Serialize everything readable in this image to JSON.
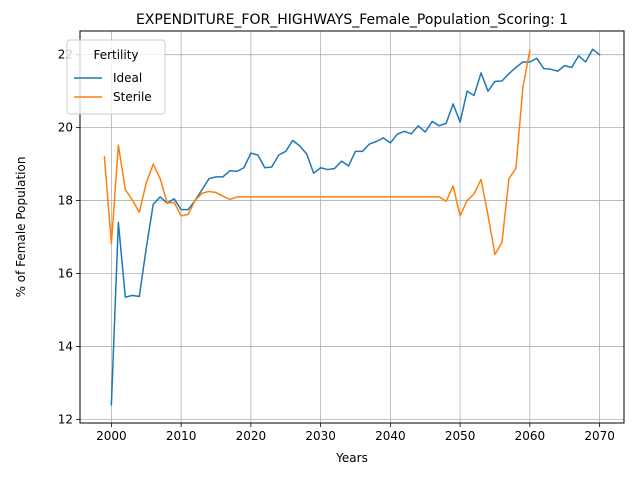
{
  "chart_data": {
    "type": "line",
    "title": "EXPENDITURE_FOR_HIGHWAYS_Female_Population_Scoring: 1",
    "xlabel": "Years",
    "ylabel": "% of Female Population",
    "xlim": [
      1995.5,
      2073.5
    ],
    "ylim": [
      11.9,
      22.65
    ],
    "xticks": [
      2000,
      2010,
      2020,
      2030,
      2040,
      2050,
      2060,
      2070
    ],
    "yticks": [
      12,
      14,
      16,
      18,
      20,
      22
    ],
    "grid": true,
    "legend": {
      "title": "Fertility",
      "placement": "top-left"
    },
    "series": [
      {
        "name": "Ideal",
        "color": "#1f77b4",
        "x": [
          2000,
          2001,
          2002,
          2003,
          2004,
          2005,
          2006,
          2007,
          2008,
          2009,
          2010,
          2011,
          2012,
          2013,
          2014,
          2015,
          2016,
          2017,
          2018,
          2019,
          2020,
          2021,
          2022,
          2023,
          2024,
          2025,
          2026,
          2027,
          2028,
          2029,
          2030,
          2031,
          2032,
          2033,
          2034,
          2035,
          2036,
          2037,
          2038,
          2039,
          2040,
          2041,
          2042,
          2043,
          2044,
          2045,
          2046,
          2047,
          2048,
          2049,
          2050,
          2051,
          2052,
          2053,
          2054,
          2055,
          2056,
          2057,
          2058,
          2059,
          2060,
          2061,
          2062,
          2063,
          2064,
          2065,
          2066,
          2067,
          2068,
          2069,
          2070
        ],
        "values": [
          12.4,
          17.4,
          15.35,
          15.4,
          15.37,
          16.7,
          17.9,
          18.1,
          17.93,
          18.05,
          17.75,
          17.75,
          18.0,
          18.3,
          18.6,
          18.65,
          18.65,
          18.82,
          18.8,
          18.9,
          19.3,
          19.25,
          18.9,
          18.92,
          19.25,
          19.35,
          19.65,
          19.5,
          19.28,
          18.75,
          18.9,
          18.85,
          18.88,
          19.08,
          18.95,
          19.35,
          19.35,
          19.55,
          19.62,
          19.72,
          19.58,
          19.82,
          19.9,
          19.83,
          20.05,
          19.88,
          20.17,
          20.05,
          20.12,
          20.65,
          20.15,
          21.0,
          20.88,
          21.5,
          21.0,
          21.27,
          21.28,
          21.48,
          21.65,
          21.8,
          21.8,
          21.9,
          21.62,
          21.6,
          21.55,
          21.7,
          21.65,
          21.97,
          21.8,
          22.15,
          22.0
        ]
      },
      {
        "name": "Sterile",
        "color": "#ff7f0e",
        "x": [
          1999,
          2000,
          2001,
          2002,
          2003,
          2004,
          2005,
          2006,
          2007,
          2008,
          2009,
          2010,
          2011,
          2012,
          2013,
          2014,
          2015,
          2016,
          2017,
          2018,
          2019,
          2020,
          2021,
          2022,
          2023,
          2024,
          2025,
          2026,
          2027,
          2028,
          2029,
          2030,
          2031,
          2032,
          2033,
          2034,
          2035,
          2036,
          2037,
          2038,
          2039,
          2040,
          2041,
          2042,
          2043,
          2044,
          2045,
          2046,
          2047,
          2048,
          2049,
          2050,
          2051,
          2052,
          2053,
          2054,
          2055,
          2056,
          2057,
          2058,
          2059,
          2060
        ],
        "values": [
          19.2,
          16.82,
          19.52,
          18.3,
          18.02,
          17.68,
          18.48,
          19.0,
          18.6,
          17.93,
          17.95,
          17.58,
          17.62,
          18.0,
          18.2,
          18.25,
          18.22,
          18.12,
          18.03,
          18.1,
          18.1,
          18.1,
          18.1,
          18.1,
          18.1,
          18.1,
          18.1,
          18.1,
          18.1,
          18.1,
          18.1,
          18.1,
          18.1,
          18.1,
          18.1,
          18.1,
          18.1,
          18.1,
          18.1,
          18.1,
          18.1,
          18.1,
          18.1,
          18.1,
          18.1,
          18.1,
          18.1,
          18.1,
          18.1,
          17.98,
          18.4,
          17.58,
          18.0,
          18.18,
          18.58,
          17.6,
          16.52,
          16.85,
          18.6,
          18.88,
          21.1,
          22.12
        ]
      }
    ]
  }
}
